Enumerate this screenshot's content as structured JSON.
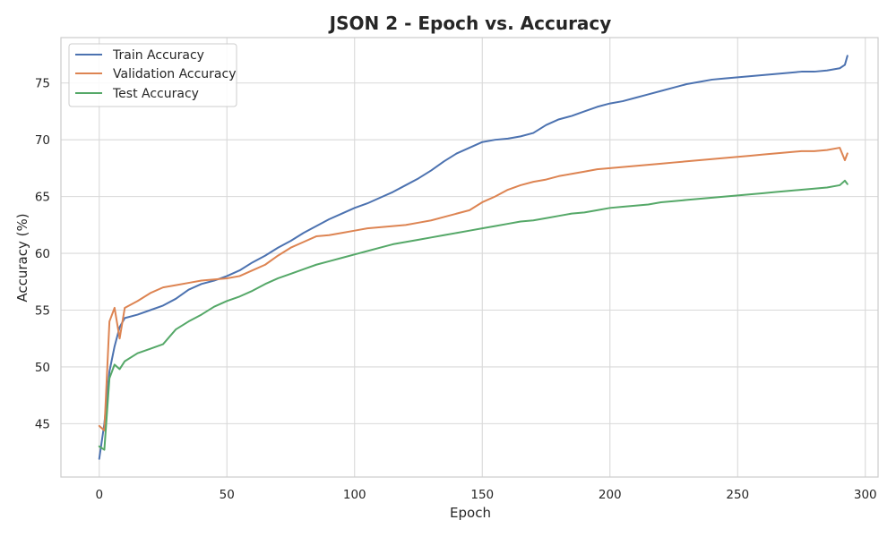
{
  "chart_data": {
    "type": "line",
    "title": "JSON 2 - Epoch vs. Accuracy",
    "xlabel": "Epoch",
    "ylabel": "Accuracy (%)",
    "xlim": [
      -15,
      305
    ],
    "ylim": [
      40.3,
      79.0
    ],
    "xticks": [
      0,
      50,
      100,
      150,
      200,
      250,
      300
    ],
    "yticks": [
      45,
      50,
      55,
      60,
      65,
      70,
      75
    ],
    "grid": true,
    "legend_position": "top-left",
    "series": [
      {
        "name": "Train Accuracy",
        "color": "#4c72b0",
        "x": [
          0,
          2,
          4,
          6,
          8,
          10,
          15,
          20,
          25,
          30,
          35,
          40,
          45,
          50,
          55,
          60,
          65,
          70,
          75,
          80,
          85,
          90,
          95,
          100,
          105,
          110,
          115,
          120,
          125,
          130,
          135,
          140,
          145,
          150,
          155,
          160,
          165,
          170,
          175,
          180,
          185,
          190,
          195,
          200,
          205,
          210,
          215,
          220,
          225,
          230,
          235,
          240,
          245,
          250,
          255,
          260,
          265,
          270,
          275,
          280,
          285,
          290,
          292,
          293
        ],
        "y": [
          41.9,
          45.0,
          49.6,
          51.8,
          53.5,
          54.3,
          54.6,
          55.0,
          55.4,
          56.0,
          56.8,
          57.3,
          57.6,
          58.0,
          58.5,
          59.2,
          59.8,
          60.5,
          61.1,
          61.8,
          62.4,
          63.0,
          63.5,
          64.0,
          64.4,
          64.9,
          65.4,
          66.0,
          66.6,
          67.3,
          68.1,
          68.8,
          69.3,
          69.8,
          70.0,
          70.1,
          70.3,
          70.6,
          71.3,
          71.8,
          72.1,
          72.5,
          72.9,
          73.2,
          73.4,
          73.7,
          74.0,
          74.3,
          74.6,
          74.9,
          75.1,
          75.3,
          75.4,
          75.5,
          75.6,
          75.7,
          75.8,
          75.9,
          76.0,
          76.0,
          76.1,
          76.3,
          76.6,
          77.4
        ]
      },
      {
        "name": "Validation Accuracy",
        "color": "#dd8452",
        "x": [
          0,
          2,
          4,
          6,
          8,
          10,
          15,
          20,
          25,
          30,
          35,
          40,
          45,
          50,
          55,
          60,
          65,
          70,
          75,
          80,
          85,
          90,
          95,
          100,
          105,
          110,
          115,
          120,
          125,
          130,
          135,
          140,
          145,
          150,
          155,
          160,
          165,
          170,
          175,
          180,
          185,
          190,
          195,
          200,
          205,
          210,
          215,
          220,
          225,
          230,
          235,
          240,
          245,
          250,
          255,
          260,
          265,
          270,
          275,
          280,
          285,
          290,
          292,
          293
        ],
        "y": [
          44.8,
          44.4,
          54.0,
          55.2,
          52.5,
          55.2,
          55.8,
          56.5,
          57.0,
          57.2,
          57.4,
          57.6,
          57.7,
          57.8,
          58.0,
          58.5,
          59.0,
          59.8,
          60.5,
          61.0,
          61.5,
          61.6,
          61.8,
          62.0,
          62.2,
          62.3,
          62.4,
          62.5,
          62.7,
          62.9,
          63.2,
          63.5,
          63.8,
          64.5,
          65.0,
          65.6,
          66.0,
          66.3,
          66.5,
          66.8,
          67.0,
          67.2,
          67.4,
          67.5,
          67.6,
          67.7,
          67.8,
          67.9,
          68.0,
          68.1,
          68.2,
          68.3,
          68.4,
          68.5,
          68.6,
          68.7,
          68.8,
          68.9,
          69.0,
          69.0,
          69.1,
          69.3,
          68.2,
          68.8
        ]
      },
      {
        "name": "Test Accuracy",
        "color": "#55a868",
        "x": [
          0,
          2,
          4,
          6,
          8,
          10,
          15,
          20,
          25,
          30,
          35,
          40,
          45,
          50,
          55,
          60,
          65,
          70,
          75,
          80,
          85,
          90,
          95,
          100,
          105,
          110,
          115,
          120,
          125,
          130,
          135,
          140,
          145,
          150,
          155,
          160,
          165,
          170,
          175,
          180,
          185,
          190,
          195,
          200,
          205,
          210,
          215,
          220,
          225,
          230,
          235,
          240,
          245,
          250,
          255,
          260,
          265,
          270,
          275,
          280,
          285,
          290,
          292,
          293
        ],
        "y": [
          43.0,
          42.7,
          49.0,
          50.2,
          49.8,
          50.5,
          51.2,
          51.6,
          52.0,
          53.3,
          54.0,
          54.6,
          55.3,
          55.8,
          56.2,
          56.7,
          57.3,
          57.8,
          58.2,
          58.6,
          59.0,
          59.3,
          59.6,
          59.9,
          60.2,
          60.5,
          60.8,
          61.0,
          61.2,
          61.4,
          61.6,
          61.8,
          62.0,
          62.2,
          62.4,
          62.6,
          62.8,
          62.9,
          63.1,
          63.3,
          63.5,
          63.6,
          63.8,
          64.0,
          64.1,
          64.2,
          64.3,
          64.5,
          64.6,
          64.7,
          64.8,
          64.9,
          65.0,
          65.1,
          65.2,
          65.3,
          65.4,
          65.5,
          65.6,
          65.7,
          65.8,
          66.0,
          66.4,
          66.1
        ]
      }
    ]
  }
}
